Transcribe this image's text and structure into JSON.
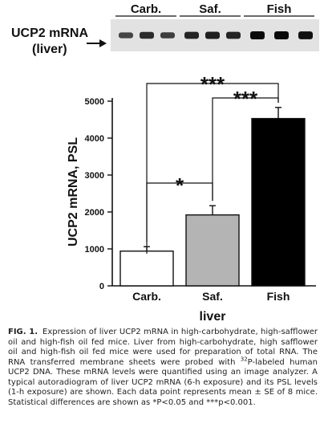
{
  "blot": {
    "label_line1": "UCP2 mRNA",
    "label_line2": "(liver)",
    "arrow": "arrow-right-icon",
    "group_labels": [
      "Carb.",
      "Saf.",
      "Fish"
    ],
    "lane_intensity": [
      0.55,
      0.75,
      0.6,
      0.8,
      0.85,
      0.8,
      1.0,
      1.0,
      0.95
    ]
  },
  "chart_data": {
    "type": "bar",
    "categories": [
      "Carb.",
      "Saf.",
      "Fish"
    ],
    "values": [
      940,
      1920,
      4530
    ],
    "errors": [
      120,
      250,
      300
    ],
    "bar_colors": [
      "#ffffff",
      "#b4b4b4",
      "#000000"
    ],
    "title": "",
    "xlabel": "liver",
    "ylabel": "UCP2 mRNA, PSL",
    "ylim": [
      0,
      5000
    ],
    "yticks": [
      0,
      1000,
      2000,
      3000,
      4000,
      5000
    ],
    "grid": false,
    "significance": [
      {
        "pair": [
          0,
          1
        ],
        "label": "*"
      },
      {
        "pair": [
          1,
          2
        ],
        "label": "***"
      },
      {
        "pair": [
          0,
          2
        ],
        "label": "***"
      }
    ]
  },
  "caption": {
    "label": "FIG. 1.",
    "text_part1": "Expression of liver UCP2 mRNA in high-carbohydrate, high-safflower oil and high-fish oil fed mice. Liver from high-carbohydrate, high safflower oil and high-fish oil fed mice were used for preparation of total RNA. The RNA transferred membrane sheets were probed with ",
    "sup": "32",
    "text_part2": "P-labeled human UCP2 DNA. These mRNA levels were quantified using an image analyzer. A typical autoradiogram of liver UCP2 mRNA (6-h exposure) and its PSL levels (1-h exposure) are shown. Each data point represents mean ± SE of 8 mice. Statistical differences are shown as *P<0.05 and ***p<0.001."
  }
}
